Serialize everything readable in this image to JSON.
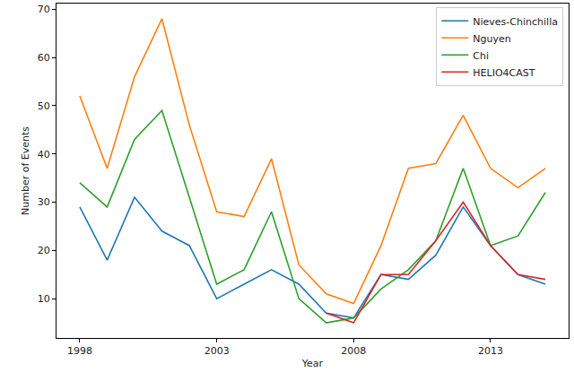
{
  "chart_data": {
    "type": "line",
    "x_label": "Year",
    "y_label": "Number of Events",
    "x": [
      1998,
      1999,
      2000,
      2001,
      2002,
      2003,
      2004,
      2005,
      2006,
      2007,
      2008,
      2009,
      2010,
      2011,
      2012,
      2013,
      2014,
      2015
    ],
    "series": [
      {
        "name": "Nieves-Chinchilla",
        "color": "#1f77b4",
        "values": [
          29,
          18,
          31,
          24,
          21,
          10,
          13,
          16,
          13,
          7,
          6,
          15,
          14,
          19,
          29,
          21,
          15,
          13
        ]
      },
      {
        "name": "Nguyen",
        "color": "#ff7f0e",
        "values": [
          52,
          37,
          56,
          68,
          46,
          28,
          27,
          39,
          17,
          11,
          9,
          21,
          37,
          38,
          48,
          37,
          33,
          37
        ]
      },
      {
        "name": "Chi",
        "color": "#2ca02c",
        "values": [
          34,
          29,
          43,
          49,
          31,
          13,
          16,
          28,
          10,
          5,
          6,
          12,
          16,
          22,
          37,
          21,
          23,
          32
        ]
      },
      {
        "name": "HELIO4CAST",
        "color": "#d62728",
        "values": [
          null,
          null,
          null,
          null,
          null,
          null,
          null,
          null,
          null,
          7,
          5,
          15,
          15,
          22,
          30,
          21,
          15,
          14
        ]
      }
    ],
    "xlim": [
      1997.15,
      2015.85
    ],
    "xticks": [
      1998,
      2003,
      2008,
      2013
    ],
    "ylim": [
      1.85,
      71.15
    ],
    "yticks": [
      10,
      20,
      30,
      40,
      50,
      60,
      70
    ],
    "grid": false,
    "legend": "upper right"
  }
}
